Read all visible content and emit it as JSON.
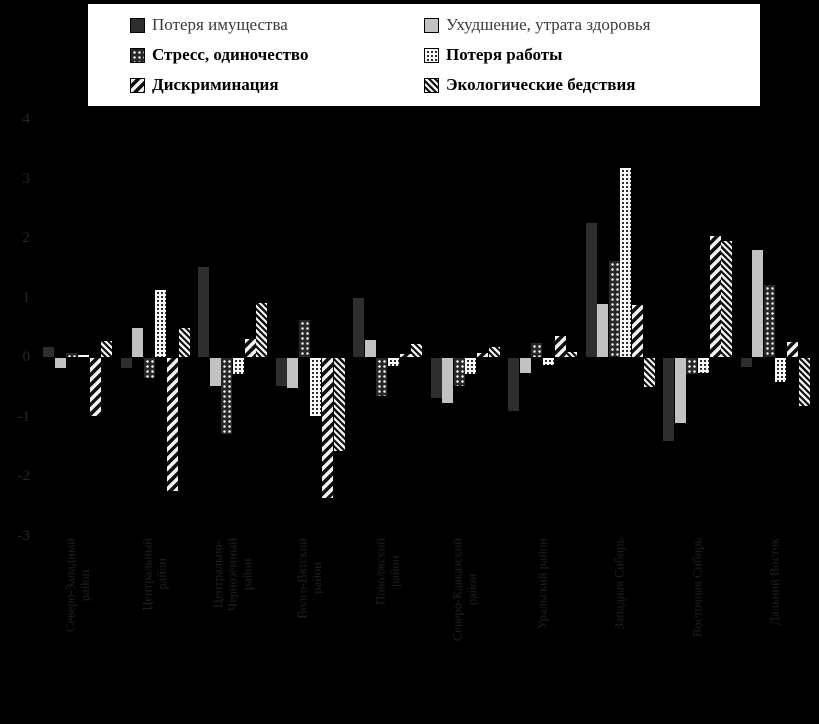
{
  "figure": {
    "background_color": "#000000",
    "legend_box_color": "#ffffff",
    "axis_text_color": "#262626"
  },
  "legend": {
    "items": [
      {
        "label": "Потеря имущества",
        "bold": false,
        "pattern": "solid-dark"
      },
      {
        "label": "Ухудшение, утрата здоровья",
        "bold": false,
        "pattern": "solid-light"
      },
      {
        "label": "Стресс, одиночество",
        "bold": true,
        "pattern": "dots-on-dark"
      },
      {
        "label": "Потеря работы",
        "bold": true,
        "pattern": "dots-on-light"
      },
      {
        "label": "Дискриминация",
        "bold": true,
        "pattern": "hatch-forward"
      },
      {
        "label": "Экологические бедствия",
        "bold": true,
        "pattern": "hatch-back"
      }
    ]
  },
  "y_axis": {
    "ticks": [
      "4",
      "3",
      "2",
      "1",
      "0",
      "-1",
      "-2",
      "-3"
    ]
  },
  "chart_data": {
    "type": "bar",
    "title": "",
    "xlabel": "",
    "ylabel": "",
    "ylim": [
      -3,
      4
    ],
    "grid": false,
    "legend_position": "top",
    "categories": [
      "Северо-Западный\nрайон",
      "Центральный\nрайон",
      "Центрально-\nЧернозёмный\nрайон",
      "Волго-Вятский\nрайон",
      "Поволжский\nрайон",
      "Северо-Кавказский\nрайон",
      "Уральский район",
      "Западная Сибирь",
      "Восточная Сибирь",
      "Дальний Восток"
    ],
    "series": [
      {
        "name": "Потеря имущества",
        "pattern": "solid-dark",
        "values": [
          0.17,
          -0.16,
          1.52,
          -0.47,
          0.99,
          -0.67,
          -0.89,
          2.25,
          -1.39,
          -0.15
        ]
      },
      {
        "name": "Ухудшение, утрата здоровья",
        "pattern": "solid-light",
        "values": [
          -0.16,
          0.48,
          -0.47,
          -0.51,
          0.29,
          -0.75,
          -0.25,
          0.89,
          -1.09,
          1.79
        ]
      },
      {
        "name": "Стресс, одиночество",
        "pattern": "dots-on-dark",
        "values": [
          0.07,
          -0.33,
          -1.28,
          0.62,
          -0.64,
          -0.47,
          0.23,
          1.61,
          -0.27,
          1.21
        ]
      },
      {
        "name": "Потеря работы",
        "pattern": "dots-on-light",
        "values": [
          0.04,
          1.13,
          -0.27,
          -0.97,
          -0.13,
          -0.27,
          -0.11,
          3.18,
          -0.25,
          -0.4
        ]
      },
      {
        "name": "Дискриминация",
        "pattern": "hatch-forward",
        "values": [
          -0.97,
          -2.24,
          0.31,
          -2.35,
          0.05,
          0.07,
          0.35,
          0.88,
          2.03,
          0.26
        ]
      },
      {
        "name": "Экологические бедствия",
        "pattern": "hatch-back",
        "values": [
          0.27,
          0.48,
          0.91,
          -1.56,
          0.22,
          0.17,
          0.09,
          -0.49,
          1.95,
          -0.81
        ]
      }
    ]
  }
}
